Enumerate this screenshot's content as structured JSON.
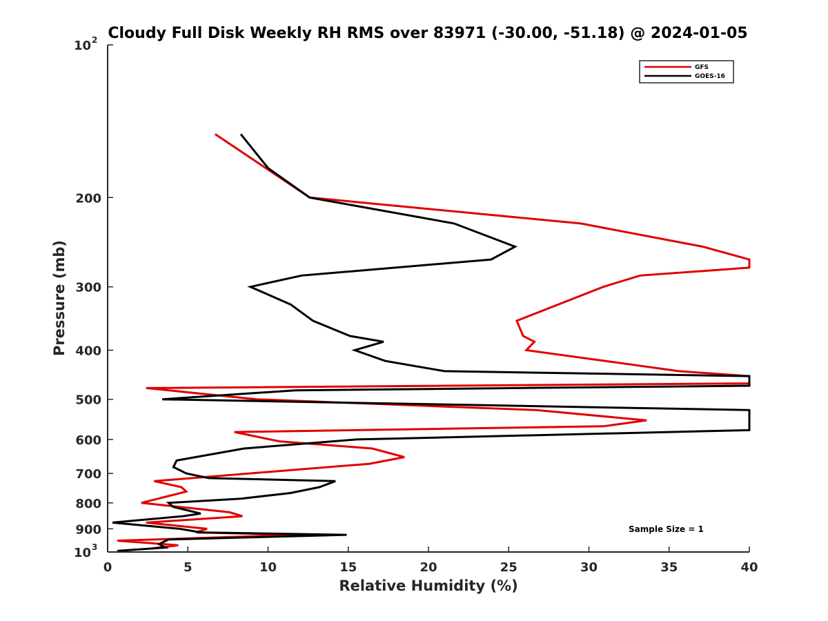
{
  "chart_data": {
    "type": "line",
    "title": "Cloudy Full Disk Weekly RH RMS over 83971 (-30.00, -51.18) @ 2024-01-05",
    "xlabel": "Relative Humidity (%)",
    "ylabel": "Pressure (mb)",
    "xlim": [
      0,
      40
    ],
    "ylim": [
      100,
      1000
    ],
    "y_scale": "log",
    "y_reversed": true,
    "grid": false,
    "x_ticks": [
      "0",
      "5",
      "10",
      "15",
      "20",
      "25",
      "30",
      "35",
      "40"
    ],
    "y_ticks": [
      {
        "value": 100,
        "base": "10",
        "exp": "2"
      },
      {
        "value": 200,
        "label": "200"
      },
      {
        "value": 300,
        "label": "300"
      },
      {
        "value": 400,
        "label": "400"
      },
      {
        "value": 500,
        "label": "500"
      },
      {
        "value": 600,
        "label": "600"
      },
      {
        "value": 700,
        "label": "700"
      },
      {
        "value": 800,
        "label": "800"
      },
      {
        "value": 900,
        "label": "900"
      },
      {
        "value": 1000,
        "base": "10",
        "exp": "3"
      }
    ],
    "legend": {
      "position": "top-right"
    },
    "annotation": "Sample Size = 1",
    "series": [
      {
        "name": "GFS",
        "color": "#e00000",
        "points": [
          [
            6.7,
            150
          ],
          [
            12.6,
            200
          ],
          [
            29.5,
            225
          ],
          [
            37.1,
            250
          ],
          [
            40.0,
            265
          ],
          [
            40.0,
            275
          ],
          [
            33.2,
            285
          ],
          [
            30.9,
            300
          ],
          [
            25.5,
            350
          ],
          [
            25.9,
            375
          ],
          [
            26.6,
            385
          ],
          [
            26.1,
            400
          ],
          [
            31.0,
            420
          ],
          [
            35.6,
            440
          ],
          [
            40.0,
            450
          ],
          [
            40.0,
            465
          ],
          [
            2.4,
            475
          ],
          [
            9.3,
            500
          ],
          [
            26.7,
            525
          ],
          [
            33.6,
            550
          ],
          [
            30.9,
            565
          ],
          [
            7.9,
            580
          ],
          [
            10.7,
            605
          ],
          [
            16.5,
            625
          ],
          [
            18.5,
            650
          ],
          [
            16.3,
            670
          ],
          [
            2.9,
            725
          ],
          [
            4.6,
            745
          ],
          [
            4.9,
            760
          ],
          [
            2.1,
            800
          ],
          [
            7.6,
            835
          ],
          [
            8.4,
            850
          ],
          [
            2.4,
            875
          ],
          [
            6.2,
            900
          ],
          [
            5.5,
            915
          ],
          [
            12.0,
            925
          ],
          [
            0.6,
            950
          ],
          [
            2.6,
            960
          ],
          [
            4.4,
            970
          ],
          [
            2.6,
            985
          ]
        ]
      },
      {
        "name": "GOES-16",
        "color": "#000000",
        "points": [
          [
            8.3,
            150
          ],
          [
            10.0,
            175
          ],
          [
            12.6,
            200
          ],
          [
            21.6,
            225
          ],
          [
            25.4,
            250
          ],
          [
            23.9,
            265
          ],
          [
            12.1,
            285
          ],
          [
            8.9,
            300
          ],
          [
            11.4,
            325
          ],
          [
            12.8,
            350
          ],
          [
            15.1,
            375
          ],
          [
            17.2,
            385
          ],
          [
            15.4,
            400
          ],
          [
            17.3,
            420
          ],
          [
            21.0,
            440
          ],
          [
            40.0,
            450
          ],
          [
            40.0,
            470
          ],
          [
            11.7,
            480
          ],
          [
            3.4,
            500
          ],
          [
            40.0,
            525
          ],
          [
            40.0,
            575
          ],
          [
            15.5,
            600
          ],
          [
            8.5,
            625
          ],
          [
            4.3,
            660
          ],
          [
            4.1,
            680
          ],
          [
            4.9,
            700
          ],
          [
            6.3,
            715
          ],
          [
            14.2,
            725
          ],
          [
            13.2,
            745
          ],
          [
            11.4,
            765
          ],
          [
            8.3,
            785
          ],
          [
            3.8,
            800
          ],
          [
            4.1,
            815
          ],
          [
            5.8,
            840
          ],
          [
            4.7,
            850
          ],
          [
            0.3,
            875
          ],
          [
            4.5,
            900
          ],
          [
            5.8,
            915
          ],
          [
            14.9,
            925
          ],
          [
            3.8,
            945
          ],
          [
            3.2,
            965
          ],
          [
            3.6,
            980
          ],
          [
            0.6,
            995
          ]
        ]
      }
    ]
  }
}
